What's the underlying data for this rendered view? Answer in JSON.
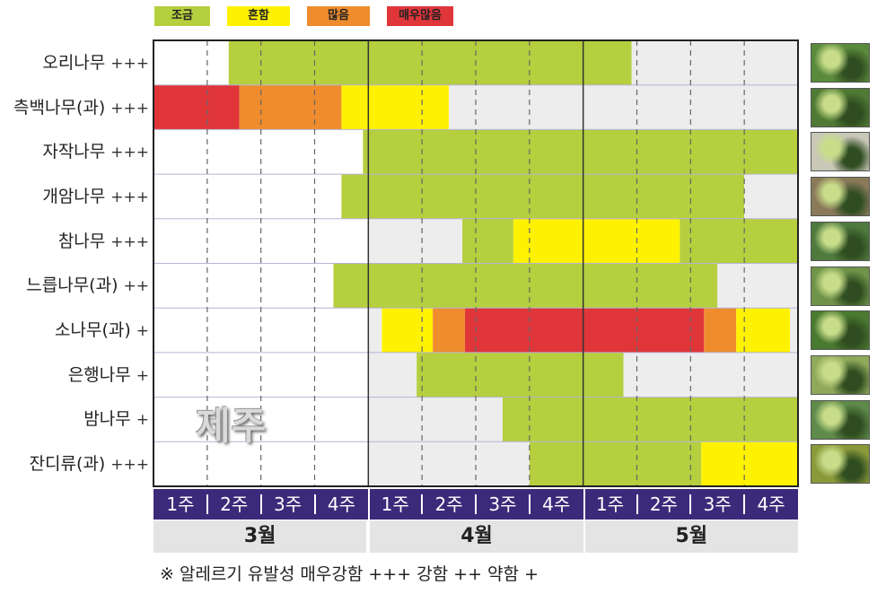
{
  "legend": [
    {
      "label": "조금",
      "color": "#b5cf3e"
    },
    {
      "label": "흔함",
      "color": "#fff200"
    },
    {
      "label": "많음",
      "color": "#ef8c2d"
    },
    {
      "label": "매우많음",
      "color": "#e0363a"
    }
  ],
  "region": "제주",
  "note": "※ 알레르기 유발성  매우강함 +++   강함 ++   약함 +",
  "colors": {
    "none": "#ffffff",
    "off": "#ededed",
    "L": "#b5cf3e",
    "Y": "#fff200",
    "O": "#ef8c2d",
    "R": "#e0363a",
    "week_bar": "#3b2a7a",
    "month_bar": "#e4e4e4"
  },
  "chart_data": {
    "type": "heatmap",
    "months": [
      "3월",
      "4월",
      "5월"
    ],
    "weeks": [
      "1주",
      "2주",
      "3주",
      "4주",
      "1주",
      "2주",
      "3주",
      "4주",
      "1주",
      "2주",
      "3주",
      "4주"
    ],
    "time_axis": "week index from start of 3월 (0–12)",
    "categories": [
      "조금",
      "흔함",
      "많음",
      "매우많음"
    ],
    "rows": [
      {
        "plant": "오리나무",
        "allergy": "+++",
        "thumb": "alder-leaves-icon",
        "segments": [
          [
            0,
            1.4,
            "none"
          ],
          [
            1.4,
            8.9,
            "L"
          ],
          [
            8.9,
            12,
            "off"
          ]
        ]
      },
      {
        "plant": "측백나무(과)",
        "allergy": "+++",
        "thumb": "cypress-branch-icon",
        "segments": [
          [
            0,
            1.6,
            "R"
          ],
          [
            1.6,
            3.5,
            "O"
          ],
          [
            3.5,
            5.5,
            "Y"
          ],
          [
            5.5,
            8,
            "off"
          ],
          [
            8,
            12,
            "off"
          ]
        ]
      },
      {
        "plant": "자작나무",
        "allergy": "+++",
        "thumb": "birch-trunks-icon",
        "segments": [
          [
            0,
            3.9,
            "none"
          ],
          [
            3.9,
            12,
            "L"
          ]
        ]
      },
      {
        "plant": "개암나무",
        "allergy": "+++",
        "thumb": "hazel-catkin-icon",
        "segments": [
          [
            0,
            3.5,
            "none"
          ],
          [
            3.5,
            11,
            "L"
          ],
          [
            11,
            12,
            "off"
          ]
        ]
      },
      {
        "plant": "참나무",
        "allergy": "+++",
        "thumb": "oak-leaves-icon",
        "segments": [
          [
            0,
            4,
            "none"
          ],
          [
            4,
            5.75,
            "off"
          ],
          [
            5.75,
            6.7,
            "L"
          ],
          [
            6.7,
            9.8,
            "Y"
          ],
          [
            9.8,
            12,
            "L"
          ]
        ]
      },
      {
        "plant": "느릅나무(과)",
        "allergy": "++",
        "thumb": "elm-twig-icon",
        "segments": [
          [
            0,
            3.35,
            "none"
          ],
          [
            3.35,
            10.5,
            "L"
          ],
          [
            10.5,
            12,
            "off"
          ]
        ]
      },
      {
        "plant": "소나무(과)",
        "allergy": "+",
        "thumb": "pine-cone-icon",
        "segments": [
          [
            0,
            4,
            "none"
          ],
          [
            4,
            4.25,
            "off"
          ],
          [
            4.25,
            5.2,
            "Y"
          ],
          [
            5.2,
            5.8,
            "O"
          ],
          [
            5.8,
            10.25,
            "R"
          ],
          [
            10.25,
            10.85,
            "O"
          ],
          [
            10.85,
            11.85,
            "Y"
          ],
          [
            11.85,
            12,
            "off"
          ]
        ]
      },
      {
        "plant": "은행나무",
        "allergy": "+",
        "thumb": "ginkgo-leaves-icon",
        "segments": [
          [
            0,
            4,
            "none"
          ],
          [
            4,
            4.9,
            "off"
          ],
          [
            4.9,
            8.75,
            "L"
          ],
          [
            8.75,
            12,
            "off"
          ]
        ]
      },
      {
        "plant": "밤나무",
        "allergy": "+",
        "thumb": "chestnut-leaves-icon",
        "segments": [
          [
            0,
            4,
            "none"
          ],
          [
            4,
            6.5,
            "off"
          ],
          [
            6.5,
            12,
            "L"
          ]
        ]
      },
      {
        "plant": "잔디류(과)",
        "allergy": "+++",
        "thumb": "grass-field-icon",
        "segments": [
          [
            0,
            4,
            "none"
          ],
          [
            4,
            7,
            "off"
          ],
          [
            7,
            10.2,
            "L"
          ],
          [
            10.2,
            12,
            "Y"
          ]
        ]
      }
    ]
  }
}
